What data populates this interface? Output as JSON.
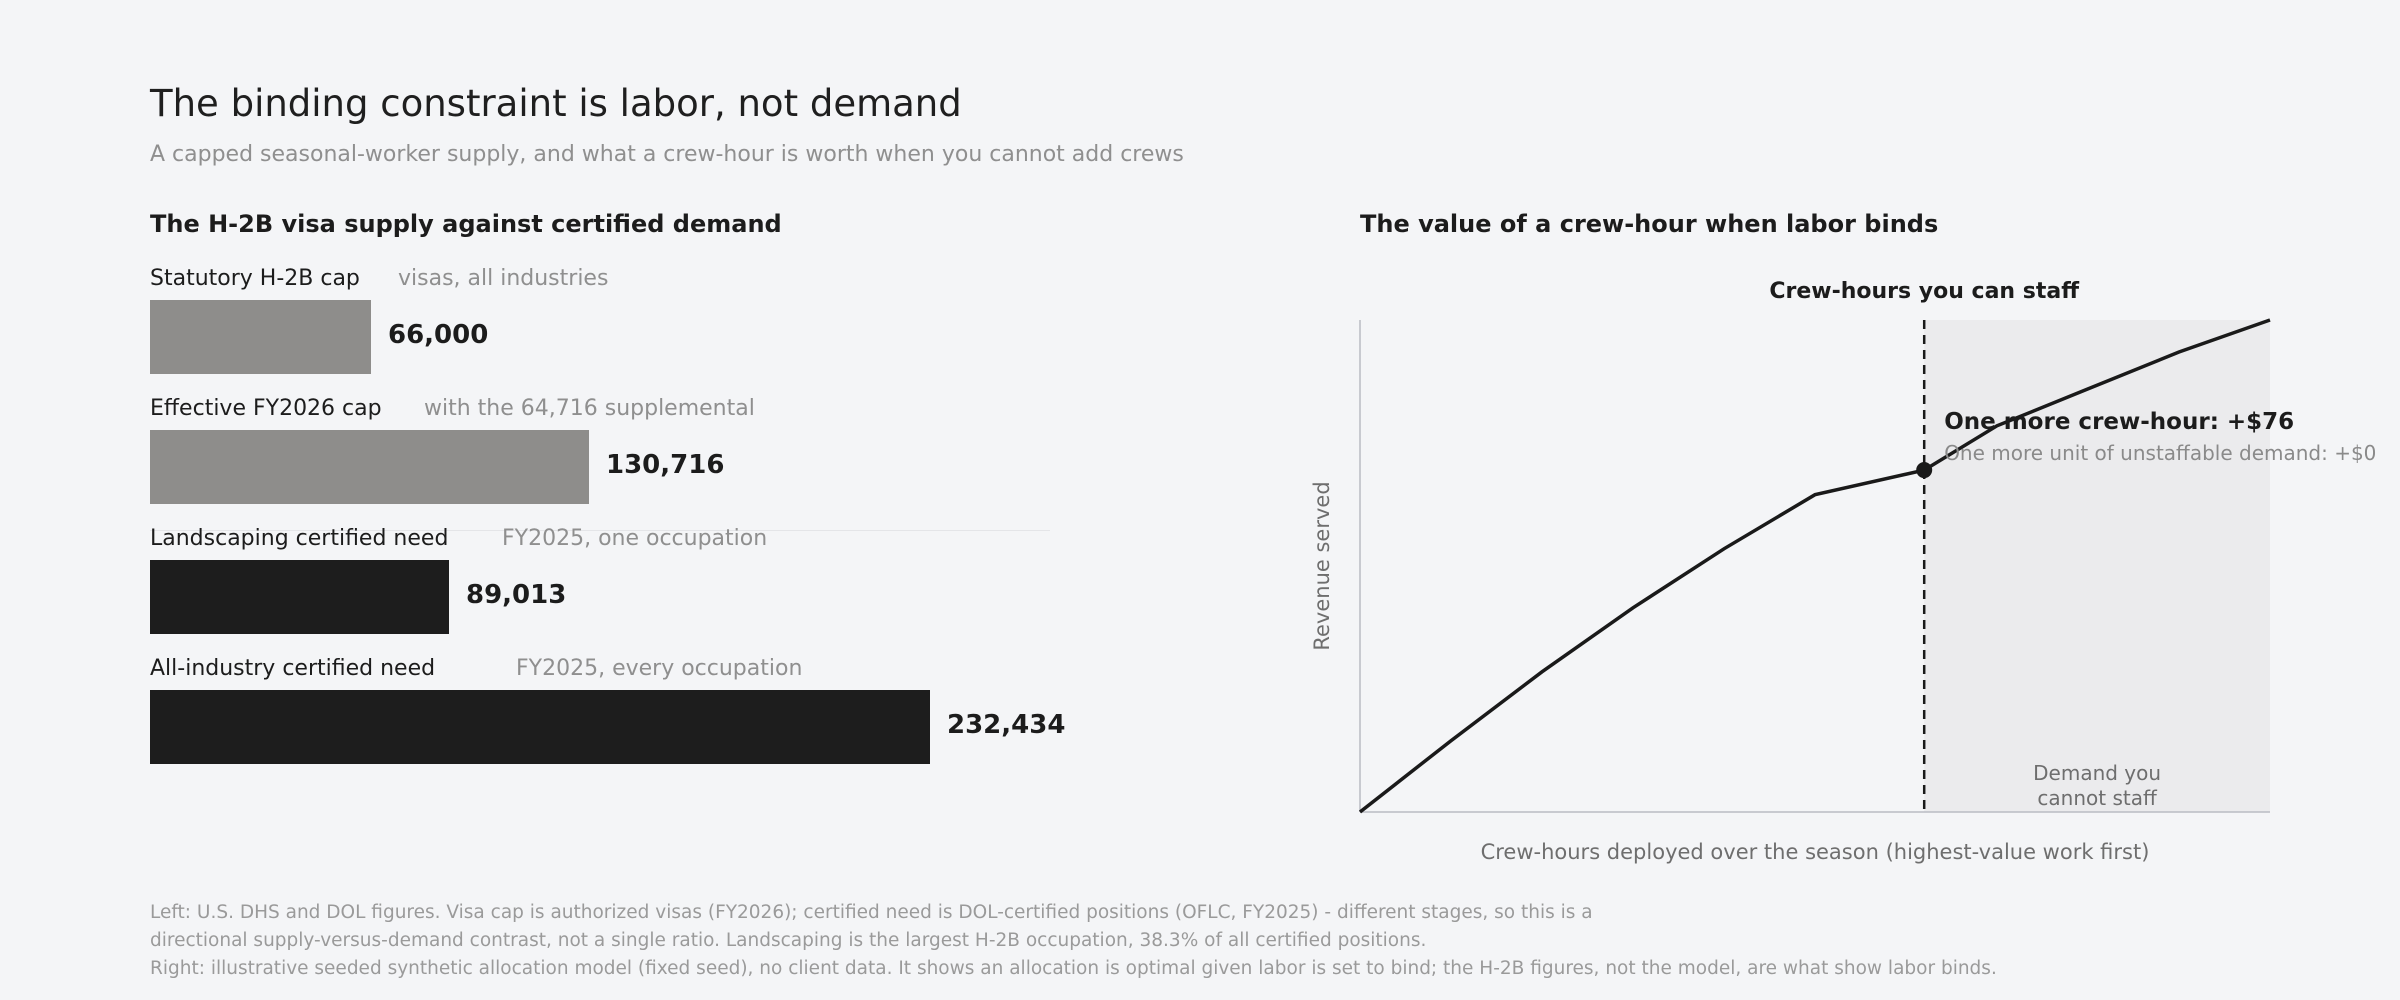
{
  "header": {
    "title": "The binding constraint is labor, not demand",
    "subtitle": "A capped seasonal-worker supply, and what a crew-hour is worth when you cannot add crews"
  },
  "left_panel": {
    "title": "The H-2B visa supply against certified demand"
  },
  "right_panel": {
    "title": "The value of a crew-hour when labor binds"
  },
  "chart_data": [
    {
      "type": "bar",
      "orientation": "horizontal",
      "title": "The H-2B visa supply against certified demand",
      "categories": [
        "Statutory H-2B cap",
        "Effective FY2026 cap",
        "Landscaping certified need",
        "All-industry certified need"
      ],
      "notes": [
        "visas, all industries",
        "with the 64,716 supplemental",
        "FY2025, one occupation",
        "FY2025, every occupation"
      ],
      "values": [
        66000,
        130716,
        89013,
        232434
      ],
      "value_labels": [
        "66,000",
        "130,716",
        "89,013",
        "232,434"
      ],
      "bar_colors": [
        "#8e8d8b",
        "#8e8d8b",
        "#1d1d1d",
        "#1d1d1d"
      ],
      "xlim": [
        0,
        232434
      ]
    },
    {
      "type": "line",
      "title": "The value of a crew-hour when labor binds",
      "xlabel": "Crew-hours deployed over the season (highest-value work first)",
      "ylabel": "Revenue served",
      "x": [
        0,
        0.1,
        0.2,
        0.3,
        0.4,
        0.5,
        0.62,
        0.7,
        0.8,
        0.9,
        1.0
      ],
      "y": [
        0,
        0.145,
        0.285,
        0.415,
        0.535,
        0.645,
        0.695,
        0.785,
        0.86,
        0.935,
        1.0
      ],
      "xlim": [
        0,
        1
      ],
      "ylim": [
        0,
        1
      ],
      "staff_limit_x": 0.62,
      "marker": {
        "x": 0.62,
        "y": 0.695
      },
      "vline_label": "Crew-hours you can staff",
      "annotation_main": "One more crew-hour: +$76",
      "annotation_sub": "One more unit of unstaffable demand: +$0",
      "shaded_region_label": [
        "Demand you",
        "cannot staff"
      ],
      "line_color": "#1a1a1a",
      "shade_color": "#ebebed"
    }
  ],
  "footnotes": [
    "Left: U.S. DHS and DOL figures. Visa cap is authorized visas (FY2026); certified need is DOL-certified positions (OFLC, FY2025) - different stages, so this is a",
    "directional supply-versus-demand contrast, not a single ratio. Landscaping is the largest H-2B occupation, 38.3% of all certified positions.",
    "Right: illustrative seeded synthetic allocation model (fixed seed), no client data. It shows an allocation is optimal given labor is set to bind; the H-2B figures, not the model, are what show labor binds."
  ]
}
